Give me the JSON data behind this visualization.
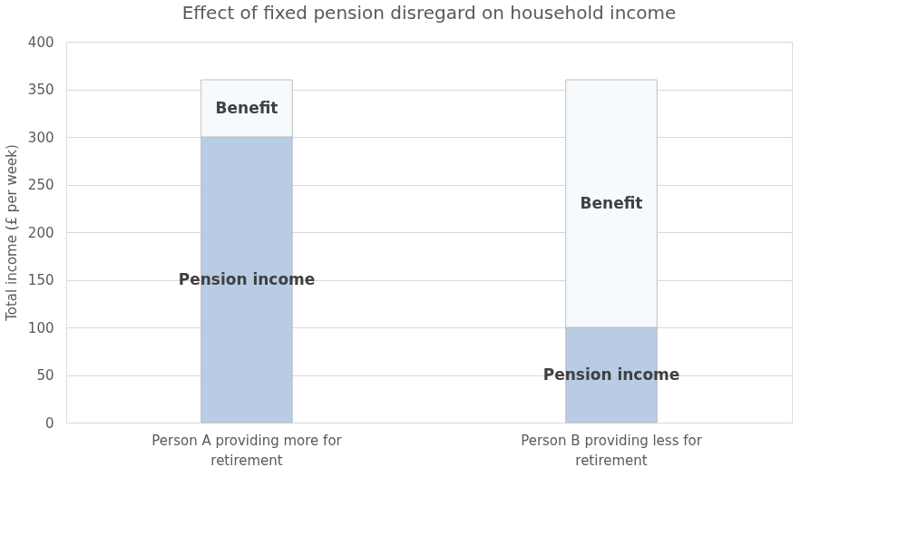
{
  "chart_data": {
    "type": "bar",
    "title": "Effect of fixed pension disregard on household income",
    "ylabel": "Total income (£ per week)",
    "categories": [
      "Person A providing more for retirement",
      "Person B providing less for retirement"
    ],
    "series": [
      {
        "name": "Pension income",
        "color": "#b8cce4",
        "values": [
          300,
          100
        ]
      },
      {
        "name": "Benefit",
        "color": "#f7fafd",
        "values": [
          60,
          260
        ]
      }
    ],
    "stacked": true,
    "ylim": [
      0,
      400
    ],
    "yticks": [
      0,
      50,
      100,
      150,
      200,
      250,
      300,
      350,
      400
    ],
    "grid": "y",
    "legend": false
  }
}
